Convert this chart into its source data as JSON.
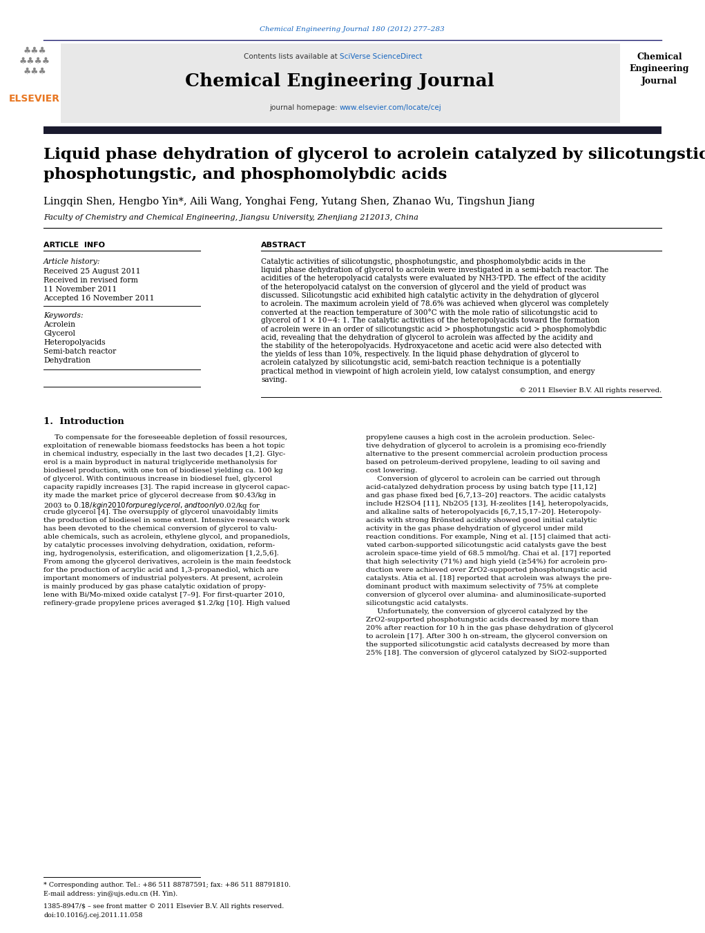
{
  "page_width": 10.21,
  "page_height": 13.51,
  "dpi": 100,
  "background_color": "#ffffff",
  "top_bar_text": "Chemical Engineering Journal 180 (2012) 277–283",
  "top_bar_link_color": "#1565c0",
  "header_bg_color": "#e8e8e8",
  "header_contents_text": "Contents lists available at ",
  "header_contents_link": "SciVerse ScienceDirect",
  "header_journal_title": "Chemical Engineering Journal",
  "header_homepage_text": "journal homepage: ",
  "header_homepage_link": "www.elsevier.com/locate/cej",
  "dark_bar_color": "#1a1a2e",
  "paper_title_line1": "Liquid phase dehydration of glycerol to acrolein catalyzed by silicotungstic,",
  "paper_title_line2": "phosphotungstic, and phosphomolybdic acids",
  "authors": "Lingqin Shen, Hengbo Yin*, Aili Wang, Yonghai Feng, Yutang Shen, Zhanao Wu, Tingshun Jiang",
  "affiliation": "Faculty of Chemistry and Chemical Engineering, Jiangsu University, Zhenjiang 212013, China",
  "article_info_label": "ARTICLE  INFO",
  "abstract_label": "ABSTRACT",
  "article_history_label": "Article history:",
  "received_line": "Received 25 August 2011",
  "revised_line": "Received in revised form",
  "revised_date": "11 November 2011",
  "accepted_line": "Accepted 16 November 2011",
  "keywords_label": "Keywords:",
  "keywords": [
    "Acrolein",
    "Glycerol",
    "Heteropolyacids",
    "Semi-batch reactor",
    "Dehydration"
  ],
  "abstract_text": "Catalytic activities of silicotungstic, phosphotungstic, and phosphomolybdic acids in the liquid phase dehydration of glycerol to acrolein were investigated in a semi-batch reactor. The acidities of the heteropolyacid catalysts were evaluated by NH3-TPD. The effect of the acidity of the heteropolyacid catalyst on the conversion of glycerol and the yield of product was discussed. Silicotungstic acid exhibited high catalytic activity in the dehydration of glycerol to acrolein. The maximum acrolein yield of 78.6% was achieved when glycerol was completely converted at the reaction temperature of 300°C with the mole ratio of silicotungstic acid to glycerol of 1 × 10−4: 1. The catalytic activities of the heteropolyacids toward the formation of acrolein were in an order of silicotungstic acid > phosphotungstic acid > phosphomolybdic acid, revealing that the dehydration of glycerol to acrolein was affected by the acidity and the stability of the heteropolyacids. Hydroxyacetone and acetic acid were also detected with the yields of less than 10%, respectively. In the liquid phase dehydration of glycerol to acrolein catalyzed by silicotungstic acid, semi-batch reaction technique is a potentially practical method in viewpoint of high acrolein yield, low catalyst consumption, and energy saving.",
  "copyright_text": "© 2011 Elsevier B.V. All rights reserved.",
  "intro_heading": "1.  Introduction",
  "intro_col1_lines": [
    "     To compensate for the foreseeable depletion of fossil resources,",
    "exploitation of renewable biomass feedstocks has been a hot topic",
    "in chemical industry, especially in the last two decades [1,2]. Glyc-",
    "erol is a main byproduct in natural triglyceride methanolysis for",
    "biodiesel production, with one ton of biodiesel yielding ca. 100 kg",
    "of glycerol. With continuous increase in biodiesel fuel, glycerol",
    "capacity rapidly increases [3]. The rapid increase in glycerol capac-",
    "ity made the market price of glycerol decrease from $0.43/kg in",
    "2003 to $0.18/kg in 2010 for pure glycerol, and to only $0.02/kg for",
    "crude glycerol [4]. The oversupply of glycerol unavoidably limits",
    "the production of biodiesel in some extent. Intensive research work",
    "has been devoted to the chemical conversion of glycerol to valu-",
    "able chemicals, such as acrolein, ethylene glycol, and propanediols,",
    "by catalytic processes involving dehydration, oxidation, reform-",
    "ing, hydrogenolysis, esterification, and oligomerization [1,2,5,6].",
    "From among the glycerol derivatives, acrolein is the main feedstock",
    "for the production of acrylic acid and 1,3-propanediol, which are",
    "important monomers of industrial polyesters. At present, acrolein",
    "is mainly produced by gas phase catalytic oxidation of propy-",
    "lene with Bi/Mo-mixed oxide catalyst [7–9]. For first-quarter 2010,",
    "refinery-grade propylene prices averaged $1.2/kg [10]. High valued"
  ],
  "intro_col2_lines": [
    "propylene causes a high cost in the acrolein production. Selec-",
    "tive dehydration of glycerol to acrolein is a promising eco-friendly",
    "alternative to the present commercial acrolein production process",
    "based on petroleum-derived propylene, leading to oil saving and",
    "cost lowering.",
    "     Conversion of glycerol to acrolein can be carried out through",
    "acid-catalyzed dehydration process by using batch type [11,12]",
    "and gas phase fixed bed [6,7,13–20] reactors. The acidic catalysts",
    "include H2SO4 [11], Nb2O5 [13], H-zeolites [14], heteropolyacids,",
    "and alkaline salts of heteropolyacids [6,7,15,17–20]. Heteropoly-",
    "acids with strong Brönsted acidity showed good initial catalytic",
    "activity in the gas phase dehydration of glycerol under mild",
    "reaction conditions. For example, Ning et al. [15] claimed that acti-",
    "vated carbon-supported silicotungstic acid catalysts gave the best",
    "acrolein space-time yield of 68.5 mmol/hg. Chai et al. [17] reported",
    "that high selectivity (71%) and high yield (≥54%) for acrolein pro-",
    "duction were achieved over ZrO2-supported phosphotungstic acid",
    "catalysts. Atia et al. [18] reported that acrolein was always the pre-",
    "dominant product with maximum selectivity of 75% at complete",
    "conversion of glycerol over alumina- and aluminosilicate-suported",
    "silicotungstic acid catalysts.",
    "     Unfortunately, the conversion of glycerol catalyzed by the",
    "ZrO2-supported phosphotungstic acids decreased by more than",
    "20% after reaction for 10 h in the gas phase dehydration of glycerol",
    "to acrolein [17]. After 300 h on-stream, the glycerol conversion on",
    "the supported silicotungstic acid catalysts decreased by more than",
    "25% [18]. The conversion of glycerol catalyzed by SiO2-supported"
  ],
  "footnote_star": "* Corresponding author. Tel.: +86 511 88787591; fax: +86 511 88791810.",
  "footnote_email": "E-mail address: yin@ujs.edu.cn (H. Yin).",
  "footnote_issn": "1385-8947/$ – see front matter © 2011 Elsevier B.V. All rights reserved.",
  "footnote_doi": "doi:10.1016/j.cej.2011.11.058",
  "link_color": "#1565c0",
  "text_color": "#000000"
}
